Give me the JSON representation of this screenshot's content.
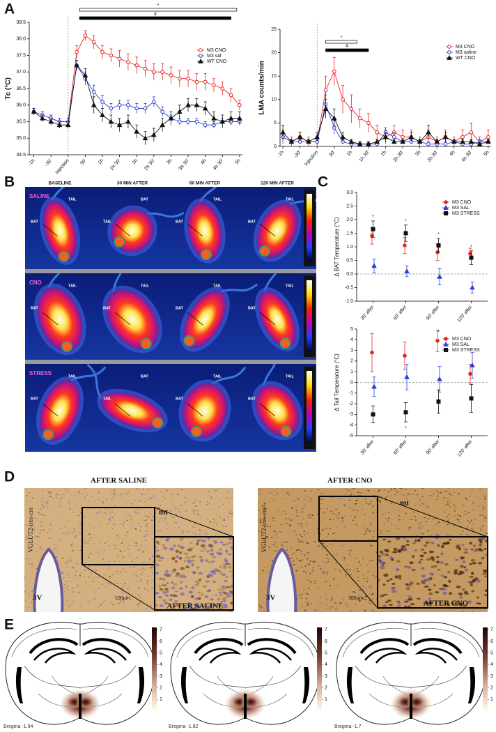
{
  "panels": [
    "A",
    "B",
    "C",
    "D",
    "E"
  ],
  "chart_data": [
    {
      "type": "line",
      "ylabel": "Tc (°C)",
      "x": [
        -60,
        -45,
        -30,
        -15,
        0,
        15,
        30,
        45,
        60,
        75,
        90,
        105,
        120,
        135,
        150,
        165,
        180,
        195,
        210,
        225,
        240,
        255,
        270,
        285,
        300
      ],
      "xlim": [
        -68,
        305
      ],
      "xticks": [
        {
          "value": -60,
          "label": "-1h"
        },
        {
          "value": -30,
          "label": "-30'"
        },
        {
          "value": 0,
          "label": "Injection"
        },
        {
          "value": 30,
          "label": "30'"
        },
        {
          "value": 60,
          "label": "1h"
        },
        {
          "value": 90,
          "label": "1h 30'"
        },
        {
          "value": 120,
          "label": "2h"
        },
        {
          "value": 150,
          "label": "2h 30'"
        },
        {
          "value": 180,
          "label": "3h"
        },
        {
          "value": 210,
          "label": "3h 30'"
        },
        {
          "value": 240,
          "label": "4h"
        },
        {
          "value": 270,
          "label": "4h 30'"
        },
        {
          "value": 300,
          "label": "5h"
        }
      ],
      "ylim": [
        34.5,
        38.5
      ],
      "yticks": [
        34.5,
        {
          "value": 35,
          "label": "35.0"
        },
        35.5,
        {
          "value": 36,
          "label": "36.0"
        },
        36.5,
        {
          "value": 37,
          "label": "37.0"
        },
        37.5,
        {
          "value": 38,
          "label": "38.0"
        },
        38.5
      ],
      "vline": 0,
      "legend": "upper right",
      "annotations": [
        {
          "label": "*",
          "from": 20,
          "to": 295,
          "style": "open"
        },
        {
          "label": "#",
          "from": 20,
          "to": 285,
          "style": "filled"
        }
      ],
      "series": [
        {
          "name": "M3 CNO",
          "color": "#e8231f",
          "marker": "circle",
          "filled": false,
          "values": [
            35.8,
            35.7,
            35.6,
            35.5,
            35.5,
            37.6,
            38.1,
            37.9,
            37.6,
            37.5,
            37.4,
            37.3,
            37.2,
            37.1,
            37.0,
            37.0,
            36.9,
            36.8,
            36.8,
            36.7,
            36.7,
            36.6,
            36.5,
            36.3,
            36.0
          ],
          "errors": [
            0.1,
            0.1,
            0.1,
            0.1,
            0.1,
            0.2,
            0.15,
            0.2,
            0.2,
            0.2,
            0.25,
            0.25,
            0.25,
            0.25,
            0.25,
            0.25,
            0.25,
            0.25,
            0.25,
            0.25,
            0.25,
            0.2,
            0.2,
            0.2,
            0.15
          ]
        },
        {
          "name": "M3 sal",
          "color": "#2a3fd6",
          "marker": "circle",
          "filled": false,
          "values": [
            35.8,
            35.7,
            35.6,
            35.5,
            35.5,
            37.2,
            36.8,
            36.4,
            36.1,
            35.9,
            36.0,
            36.0,
            35.9,
            35.9,
            36.1,
            35.8,
            35.6,
            35.5,
            35.5,
            35.5,
            35.4,
            35.4,
            35.5,
            35.5,
            35.5
          ],
          "errors": [
            0.1,
            0.1,
            0.1,
            0.1,
            0.1,
            0.15,
            0.2,
            0.2,
            0.2,
            0.15,
            0.15,
            0.15,
            0.15,
            0.15,
            0.15,
            0.15,
            0.1,
            0.1,
            0.1,
            0.1,
            0.1,
            0.1,
            0.1,
            0.1,
            0.1
          ]
        },
        {
          "name": "WT CNO",
          "color": "#111111",
          "marker": "triangle",
          "filled": true,
          "values": [
            35.8,
            35.6,
            35.5,
            35.4,
            35.4,
            37.2,
            36.9,
            36.0,
            35.7,
            35.5,
            35.4,
            35.5,
            35.2,
            35.0,
            35.1,
            35.4,
            35.6,
            35.8,
            36.0,
            36.0,
            35.9,
            35.6,
            35.5,
            35.6,
            35.6
          ],
          "errors": [
            0.1,
            0.1,
            0.1,
            0.1,
            0.1,
            0.15,
            0.2,
            0.25,
            0.2,
            0.2,
            0.2,
            0.2,
            0.2,
            0.2,
            0.2,
            0.2,
            0.2,
            0.2,
            0.2,
            0.2,
            0.2,
            0.2,
            0.2,
            0.2,
            0.2
          ]
        }
      ]
    },
    {
      "type": "line",
      "ylabel": "LMA counts/min",
      "x": [
        -60,
        -45,
        -30,
        -15,
        0,
        15,
        30,
        45,
        60,
        75,
        90,
        105,
        120,
        135,
        150,
        165,
        180,
        195,
        210,
        225,
        240,
        255,
        270,
        285,
        300
      ],
      "xlim": [
        -65,
        305
      ],
      "xticks": [
        {
          "value": -60,
          "label": "-1h"
        },
        {
          "value": -30,
          "label": "-30'"
        },
        {
          "value": 0,
          "label": "Injection"
        },
        {
          "value": 30,
          "label": "30'"
        },
        {
          "value": 60,
          "label": "1h"
        },
        {
          "value": 90,
          "label": "1h 30'"
        },
        {
          "value": 120,
          "label": "2h"
        },
        {
          "value": 150,
          "label": "2h 30'"
        },
        {
          "value": 180,
          "label": "3h"
        },
        {
          "value": 210,
          "label": "3h 30'"
        },
        {
          "value": 240,
          "label": "4h"
        },
        {
          "value": 270,
          "label": "4h 30'"
        },
        {
          "value": 300,
          "label": "5h"
        }
      ],
      "ylim": [
        0,
        25
      ],
      "yticks": [
        0,
        5,
        10,
        15,
        20,
        25
      ],
      "vline": 0,
      "legend": "upper right",
      "annotations": [
        {
          "label": "*",
          "from": 15,
          "to": 70,
          "style": "open"
        },
        {
          "label": "#",
          "from": 15,
          "to": 90,
          "style": "filled"
        }
      ],
      "series": [
        {
          "name": "M3 CNO",
          "color": "#e8231f",
          "marker": "circle",
          "filled": false,
          "values": [
            2,
            1,
            2,
            1,
            1,
            12,
            16,
            10,
            8,
            6,
            5,
            3,
            2,
            3,
            2,
            2,
            1,
            2,
            1,
            2,
            1,
            2,
            3,
            1,
            2
          ],
          "errors": [
            1.5,
            1,
            1,
            1,
            1,
            3,
            3,
            3,
            3,
            2,
            2,
            1.5,
            1.5,
            1.5,
            1.5,
            1.5,
            1,
            1.5,
            1,
            1.5,
            1,
            1.5,
            2,
            1,
            1.5
          ]
        },
        {
          "name": "M3 saline",
          "color": "#2a3fd6",
          "marker": "circle",
          "filled": false,
          "values": [
            2,
            1,
            1,
            1,
            1,
            9,
            4,
            1,
            0.5,
            0.5,
            0.5,
            0.5,
            3,
            2,
            1,
            1,
            1,
            0.5,
            0.5,
            0.5,
            1,
            0.5,
            0.5,
            1,
            1
          ],
          "errors": [
            1,
            0.5,
            0.5,
            0.5,
            0.5,
            2,
            1.5,
            0.5,
            0.5,
            0.5,
            0.5,
            0.5,
            1,
            1,
            0.5,
            0.5,
            0.5,
            0.5,
            0.5,
            0.5,
            0.5,
            0.5,
            0.5,
            0.5,
            0.5
          ]
        },
        {
          "name": "WT CNO",
          "color": "#111111",
          "marker": "triangle",
          "filled": true,
          "values": [
            3,
            1,
            2,
            1,
            2,
            8,
            6,
            2,
            1,
            0.5,
            0.5,
            1,
            2,
            1,
            1,
            2,
            1,
            3,
            1,
            2,
            1,
            1,
            1,
            0.5,
            1
          ],
          "errors": [
            1.5,
            0.5,
            1,
            0.5,
            1,
            2,
            2,
            1,
            0.5,
            0.5,
            0.5,
            0.5,
            1,
            0.5,
            0.5,
            1,
            0.5,
            1.5,
            0.5,
            1,
            0.5,
            0.5,
            0.5,
            0.5,
            0.5
          ]
        }
      ]
    },
    {
      "type": "dot",
      "ylabel": "Δ BAT Temperature (°C)",
      "categories": [
        "30' after",
        "60' after",
        "90' after",
        "120' after"
      ],
      "ylim": [
        -1,
        3
      ],
      "yticks": [
        {
          "value": -1,
          "label": "-1.0"
        },
        -0.5,
        {
          "value": 0,
          "label": "0.0"
        },
        0.5,
        {
          "value": 1,
          "label": "1.0"
        },
        1.5,
        {
          "value": 2,
          "label": "2.0"
        },
        2.5,
        {
          "value": 3,
          "label": "3.0"
        }
      ],
      "zero_line": true,
      "legend": "upper right",
      "annotations": [
        {
          "label": "*",
          "category": "30' after",
          "y": 2.1
        },
        {
          "label": "*",
          "category": "60' after",
          "y": 1.95
        },
        {
          "label": "*",
          "category": "90' after",
          "y": 1.45
        },
        {
          "label": "*",
          "category": "120' after",
          "y": 1.0
        }
      ],
      "series": [
        {
          "name": "M3 CNO",
          "color": "#e8231f",
          "marker": "circle",
          "filled": true,
          "values": [
            1.4,
            1.05,
            0.8,
            0.75
          ],
          "errors": [
            0.3,
            0.3,
            0.3,
            0.2
          ]
        },
        {
          "name": "M3 SAL",
          "color": "#2a3fd6",
          "marker": "triangle",
          "filled": true,
          "values": [
            0.3,
            0.1,
            -0.1,
            -0.5
          ],
          "errors": [
            0.25,
            0.2,
            0.3,
            0.2
          ]
        },
        {
          "name": "M3 STRESS",
          "color": "#111111",
          "marker": "square",
          "filled": true,
          "values": [
            1.65,
            1.5,
            1.05,
            0.6
          ],
          "errors": [
            0.3,
            0.3,
            0.25,
            0.25
          ]
        }
      ]
    },
    {
      "type": "dot",
      "ylabel": "Δ Tail Temperature (°C)",
      "categories": [
        "30' after",
        "60' after",
        "90' after",
        "120' after"
      ],
      "ylim": [
        -5,
        5
      ],
      "yticks": [
        -5,
        -4,
        -3,
        -2,
        -1,
        0,
        1,
        2,
        3,
        4,
        5
      ],
      "zero_line": true,
      "legend": "upper right",
      "annotations": [
        {
          "label": "*",
          "category": "90' after",
          "y": 4.7
        },
        {
          "label": "*",
          "category": "60' after",
          "y": -4.3
        }
      ],
      "series": [
        {
          "name": "M3 CNO",
          "color": "#e8231f",
          "marker": "circle",
          "filled": true,
          "values": [
            2.8,
            2.5,
            3.9,
            0.8
          ],
          "errors": [
            1.8,
            1.3,
            1.0,
            0.9
          ]
        },
        {
          "name": "M3 SAL",
          "color": "#2a3fd6",
          "marker": "triangle",
          "filled": true,
          "values": [
            -0.4,
            0.5,
            0.3,
            1.6
          ],
          "errors": [
            0.9,
            1.2,
            1.2,
            1.2
          ]
        },
        {
          "name": "M3 STRESS",
          "color": "#111111",
          "marker": "square",
          "filled": true,
          "values": [
            -3.0,
            -2.8,
            -1.8,
            -1.5
          ],
          "errors": [
            0.8,
            0.9,
            1.1,
            1.3
          ]
        }
      ]
    }
  ],
  "thermal": {
    "columns": [
      "BASELINE",
      "30 MIN AFTER",
      "60 MIN  AFTER",
      "120 MIN AFTER"
    ],
    "rows": [
      {
        "label": "SALINE",
        "images": [
          {
            "labels": [
              "TAIL",
              "BAT"
            ]
          },
          {
            "labels": [
              "BAT",
              "TAIL"
            ]
          },
          {
            "labels": [
              "TAIL",
              "BAT"
            ]
          },
          {
            "labels": [
              "TAIL",
              "BAT"
            ]
          }
        ]
      },
      {
        "label": "CNO",
        "images": [
          {
            "labels": [
              "TAIL",
              "BAT"
            ]
          },
          {
            "labels": [
              "TAIL",
              "BAT"
            ]
          },
          {
            "labels": [
              "TAIL",
              "BAT"
            ]
          },
          {
            "labels": [
              "TAIL",
              "BAT"
            ]
          }
        ]
      },
      {
        "label": "STRESS",
        "images": [
          {
            "labels": [
              "TAIL",
              "BAT"
            ]
          },
          {
            "labels": [
              "BAT",
              "TAIL"
            ]
          },
          {
            "labels": [
              "TAIL",
              "BAT"
            ]
          },
          {
            "labels": [
              "TAIL",
              "BAT"
            ]
          }
        ]
      }
    ]
  },
  "histology": [
    {
      "title": "AFTER SALINE",
      "side_label": "VGLUT2-ires-cre",
      "region": "mt",
      "ventricle": "3V",
      "scale": "100µm",
      "inset_label": "AFTER SALINE"
    },
    {
      "title": "AFTER CNO",
      "side_label": "VGLUT2-ires-cre",
      "region": "mt",
      "ventricle": "3V",
      "scale": "100µm",
      "inset_label": "AFTER CNO"
    }
  ],
  "atlas": {
    "colorbar_lim": [
      0,
      7.2
    ],
    "colorbar_ticks": [
      1,
      2,
      3,
      4,
      5,
      6,
      7
    ],
    "sections": [
      "Bregma -1.94",
      "Bregma -1.82",
      "Bregma -1.7"
    ]
  }
}
